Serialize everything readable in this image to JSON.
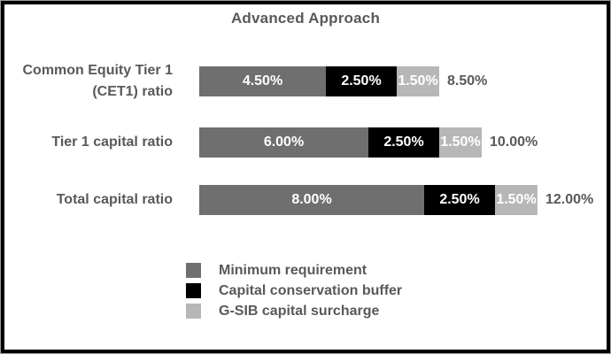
{
  "colors": {
    "frame_border": "#000000",
    "frame_outline": "#9c9c9c",
    "background": "#ffffff",
    "text_dark_gray": "#595959",
    "segment_value_text": "#ffffff",
    "minimum_requirement": "#6f6f6f",
    "capital_conservation_buffer": "#000000",
    "gsib_capital_surcharge": "#b7b7b7"
  },
  "chart_data": {
    "type": "bar",
    "orientation": "horizontal",
    "stacked": true,
    "title": "Advanced Approach",
    "xlabel": "",
    "ylabel": "",
    "xlim": [
      0,
      12
    ],
    "grid": false,
    "legend_position": "bottom",
    "categories": [
      "Common Equity Tier 1 (CET1) ratio",
      "Tier 1 capital ratio",
      "Total capital ratio"
    ],
    "series": [
      {
        "name": "Minimum requirement",
        "color": "#6f6f6f",
        "values": [
          4.5,
          6.0,
          8.0
        ],
        "labels": [
          "4.50%",
          "6.00%",
          "8.00%"
        ]
      },
      {
        "name": "Capital conservation buffer",
        "color": "#000000",
        "values": [
          2.5,
          2.5,
          2.5
        ],
        "labels": [
          "2.50%",
          "2.50%",
          "2.50%"
        ]
      },
      {
        "name": "G-SIB capital surcharge",
        "color": "#b7b7b7",
        "values": [
          1.5,
          1.5,
          1.5
        ],
        "labels": [
          "1.50%",
          "1.50%",
          "1.50%"
        ]
      }
    ],
    "totals": [
      "8.50%",
      "10.00%",
      "12.00%"
    ],
    "total_values": [
      8.5,
      10.0,
      12.0
    ]
  }
}
